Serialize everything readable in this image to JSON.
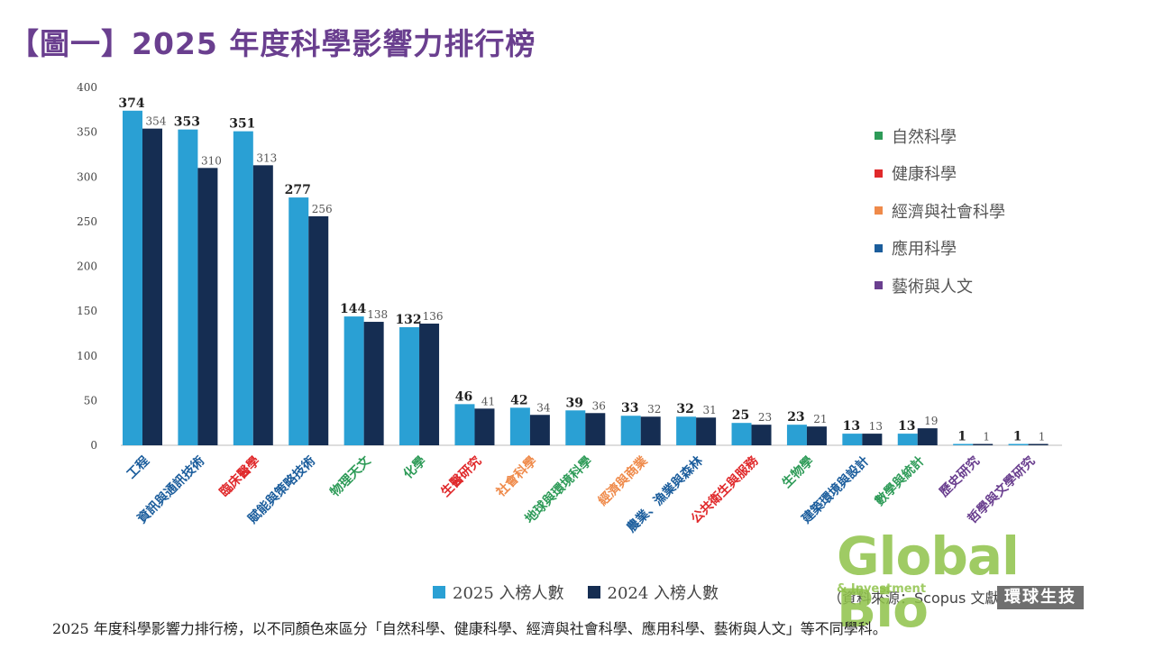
{
  "title": "【圖一】2025 年度科學影響力排行榜",
  "chart_data": {
    "type": "bar",
    "ylim": [
      0,
      400
    ],
    "yticks": [
      0,
      50,
      100,
      150,
      200,
      250,
      300,
      350,
      400
    ],
    "categories": [
      "工程",
      "資訊與通訊技術",
      "臨床醫學",
      "賦能與策略技術",
      "物理天文",
      "化學",
      "生醫研究",
      "社會科學",
      "地球與環境科學",
      "經濟與商業",
      "農業、漁業與森林",
      "公共衛生與服務",
      "生物學",
      "建築環境與設計",
      "數學與統計",
      "歷史研究",
      "哲學與文學研究"
    ],
    "category_fields": [
      "應用科學",
      "應用科學",
      "健康科學",
      "應用科學",
      "自然科學",
      "自然科學",
      "健康科學",
      "經濟與社會科學",
      "自然科學",
      "經濟與社會科學",
      "應用科學",
      "健康科學",
      "自然科學",
      "應用科學",
      "自然科學",
      "藝術與人文",
      "藝術與人文"
    ],
    "series": [
      {
        "name": "2025 入榜人數",
        "color": "#2aa0d4",
        "values": [
          374,
          353,
          351,
          277,
          144,
          132,
          46,
          42,
          39,
          33,
          32,
          25,
          23,
          13,
          13,
          1,
          1
        ]
      },
      {
        "name": "2024 入榜人數",
        "color": "#152d52",
        "values": [
          354,
          310,
          313,
          256,
          138,
          136,
          41,
          34,
          36,
          32,
          31,
          23,
          21,
          13,
          19,
          1,
          1
        ]
      }
    ],
    "legend": "bottom"
  },
  "fields_legend": [
    {
      "label": "自然科學",
      "color": "#2e9b58"
    },
    {
      "label": "健康科學",
      "color": "#e0292b"
    },
    {
      "label": "經濟與社會科學",
      "color": "#ef8a4a"
    },
    {
      "label": "應用科學",
      "color": "#1b5d9c"
    },
    {
      "label": "藝術與人文",
      "color": "#6a3f8f"
    }
  ],
  "source": "（資料來源：Scopus 文獻資料庫）",
  "logo": {
    "main": "Global Bio",
    "sub": "& Investment",
    "badge": "環球生技"
  },
  "caption": "2025 年度科學影響力排行榜，以不同顏色來區分「自然科學、健康科學、經濟與社會科學、應用科學、藝術與人文」等不同學科。"
}
